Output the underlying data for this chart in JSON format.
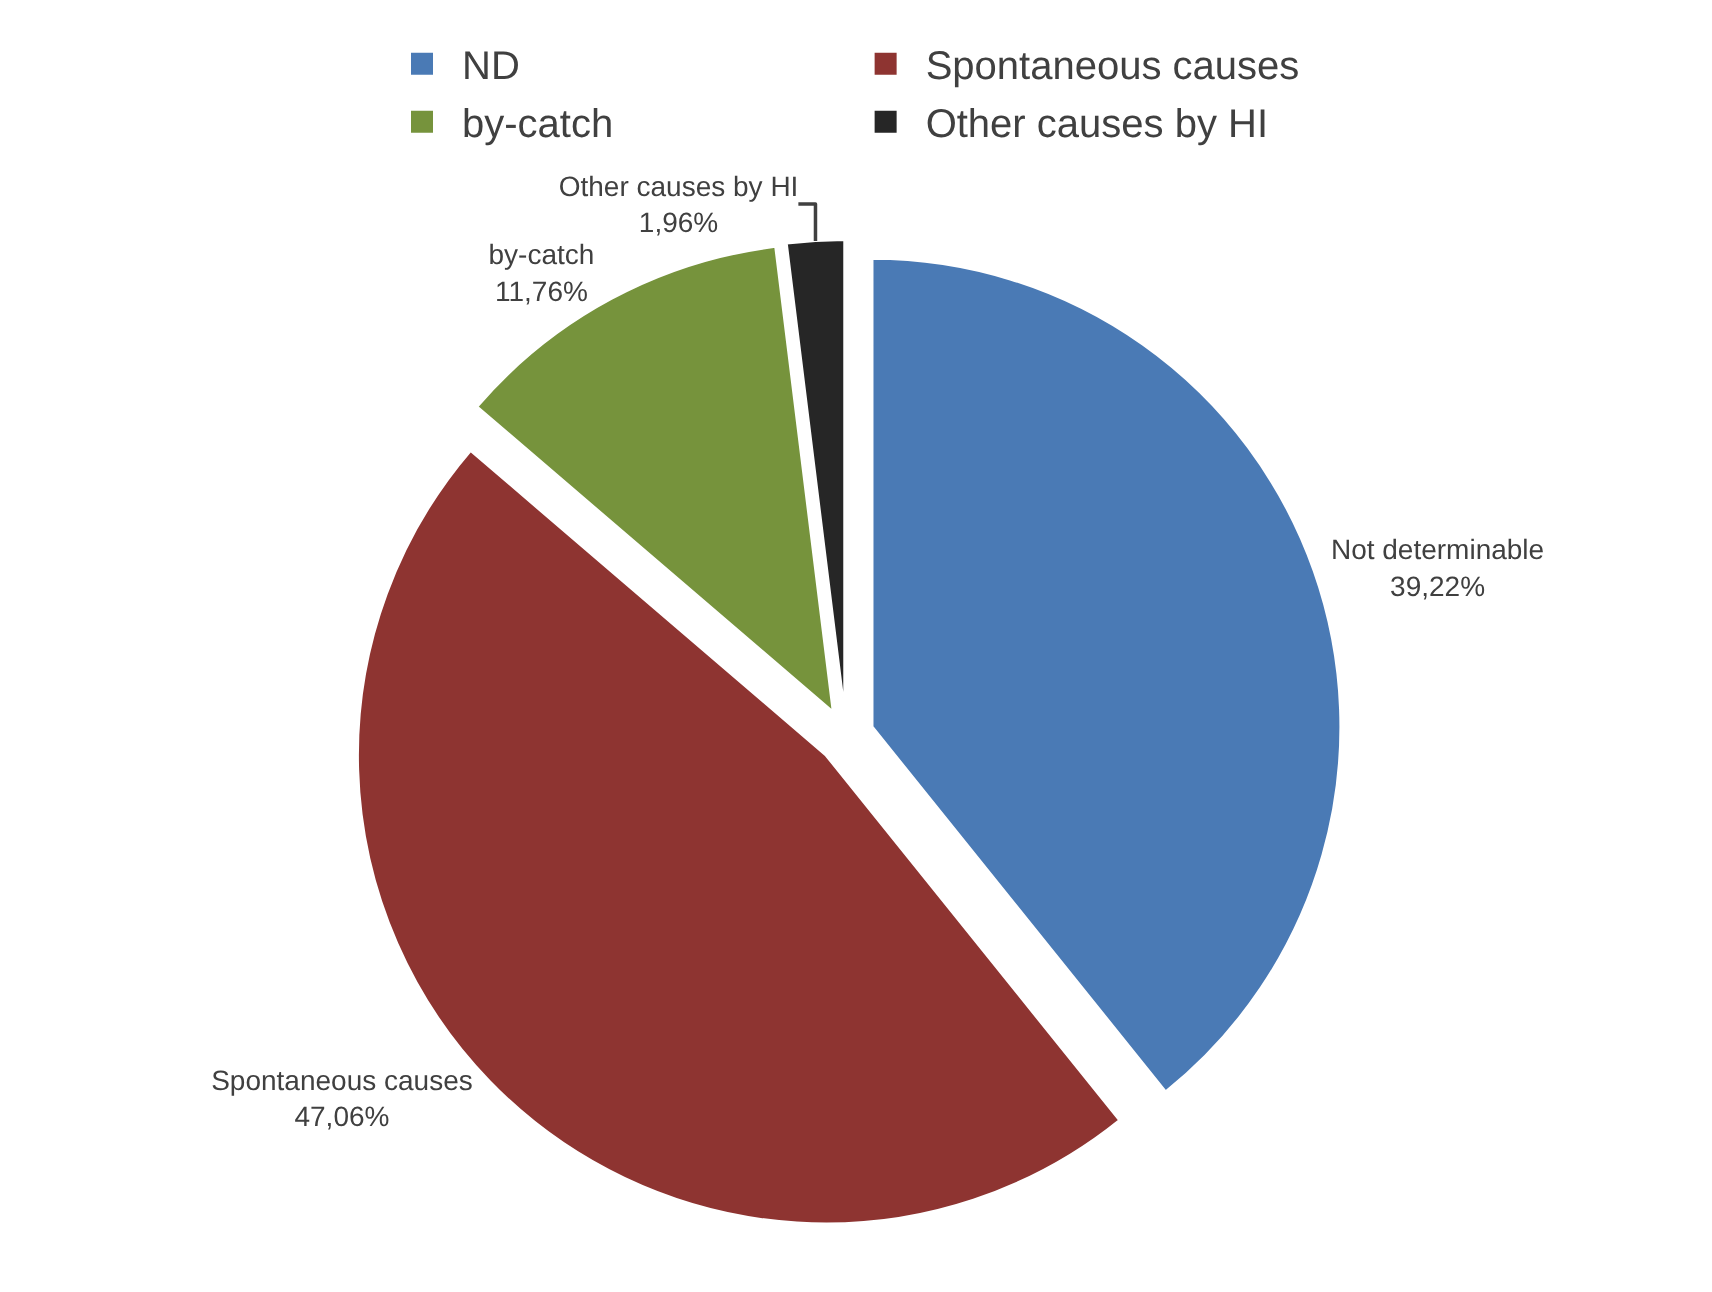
{
  "chart_data": {
    "type": "pie",
    "categories": [
      "ND",
      "Spontaneous causes",
      "by-catch",
      "Other causes by HI"
    ],
    "values": [
      39.22,
      47.06,
      11.76,
      1.96
    ],
    "colors": [
      "#4a7ab5",
      "#8e3431",
      "#76933c",
      "#262626"
    ],
    "value_labels": [
      "Not determinable\n39,22%",
      "Spontaneous causes\n47,06%",
      "by-catch\n11,76%",
      "Other causes by HI\n1,96%"
    ],
    "legend": "top"
  }
}
